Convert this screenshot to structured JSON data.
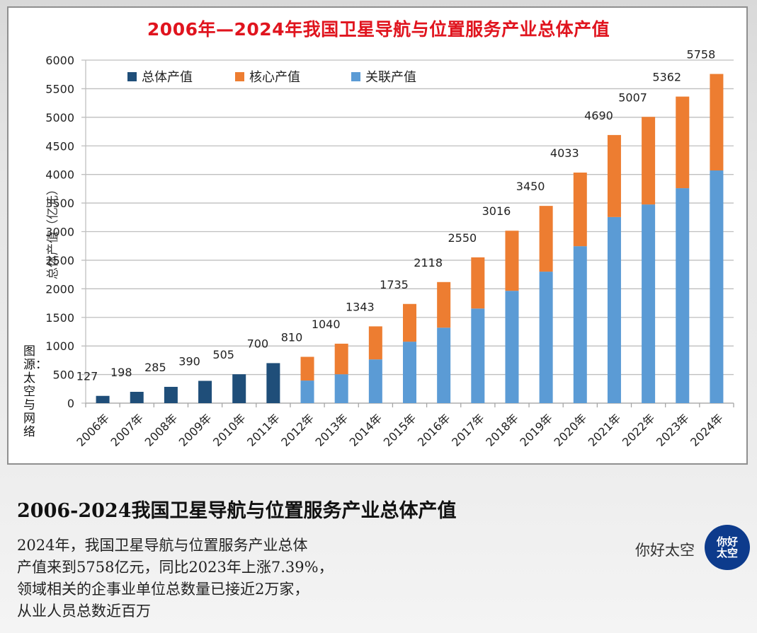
{
  "chart_data": {
    "type": "bar",
    "stacked": true,
    "title": "2006年—2024年我国卫星导航与位置服务产业总体产值",
    "xlabel": "",
    "ylabel": "总体产值（亿元）",
    "ylim": [
      0,
      6000
    ],
    "yticks": [
      0,
      500,
      1000,
      1500,
      2000,
      2500,
      3000,
      3500,
      4000,
      4500,
      5000,
      5500,
      6000
    ],
    "grid": true,
    "legend_position": "top-left",
    "categories": [
      "2006年",
      "2007年",
      "2008年",
      "2009年",
      "2010年",
      "2011年",
      "2012年",
      "2013年",
      "2014年",
      "2015年",
      "2016年",
      "2017年",
      "2018年",
      "2019年",
      "2020年",
      "2021年",
      "2022年",
      "2023年",
      "2024年"
    ],
    "totals": [
      127,
      198,
      285,
      390,
      505,
      700,
      810,
      1040,
      1343,
      1735,
      2118,
      2550,
      3016,
      3450,
      4033,
      4690,
      5007,
      5362,
      5758
    ],
    "series": [
      {
        "name": "总体产值",
        "color": "#1f4e79",
        "values": [
          127,
          198,
          285,
          390,
          505,
          700,
          null,
          null,
          null,
          null,
          null,
          null,
          null,
          null,
          null,
          null,
          null,
          null,
          null
        ]
      },
      {
        "name": "核心产值",
        "color": "#ed7d31",
        "values": [
          null,
          null,
          null,
          null,
          null,
          null,
          415,
          535,
          578,
          660,
          798,
          895,
          1051,
          1150,
          1288,
          1435,
          1532,
          1602,
          1688
        ]
      },
      {
        "name": "关联产值",
        "color": "#5b9bd5",
        "values": [
          null,
          null,
          null,
          null,
          null,
          null,
          395,
          505,
          765,
          1075,
          1320,
          1655,
          1965,
          2300,
          2745,
          3255,
          3475,
          3760,
          4070
        ]
      }
    ]
  },
  "source_note": "图源：太空与网络",
  "caption": {
    "title": "2006-2024我国卫星导航与位置服务产业总体产值",
    "lines": [
      "2024年，我国卫星导航与位置服务产业总体",
      "产值来到5758亿元，同比2023年上涨7.39%，",
      "领域相关的企事业单位总数量已接近2万家，",
      "从业人员总数近百万"
    ]
  },
  "brand": {
    "name": "你好太空",
    "logo_line1": "你好",
    "logo_line2": "太空"
  }
}
